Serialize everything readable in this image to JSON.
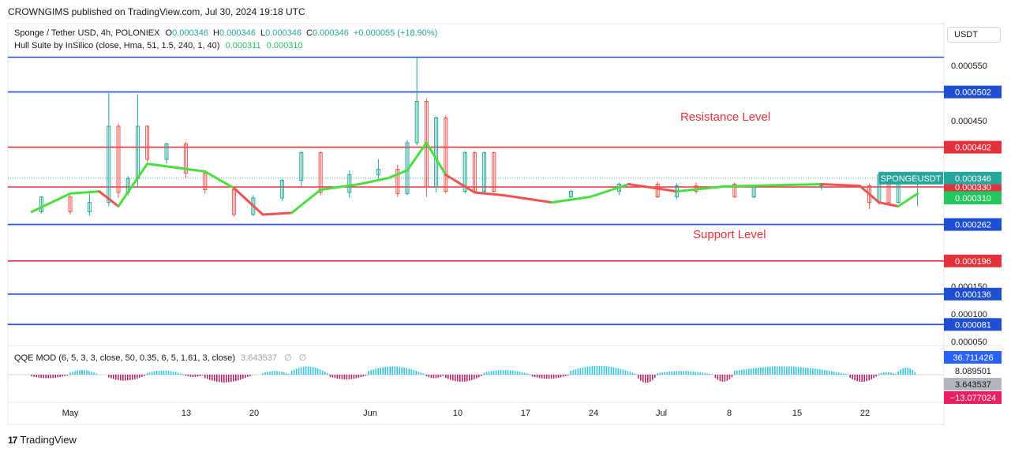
{
  "header": {
    "publisher_text": "CROWNGIMS published on TradingView.com, Jul 30, 2024 19:18 UTC"
  },
  "legend": {
    "symbol_line": "Sponge / Tether USD, 4h, POLONIEX",
    "ohlc": {
      "o_label": "O",
      "o": "0.000346",
      "h_label": "H",
      "h": "0.000346",
      "l_label": "L",
      "l": "0.000346",
      "c_label": "C",
      "c": "0.000346",
      "change": "+0.000055 (+18.90%)"
    },
    "hull_line": "Hull Suite by InSilico (close, Hma, 51, 1.5, 240, 1, 40)",
    "hull_v1": "0.000311",
    "hull_v2": "0.000310",
    "qqe_line": "QQE MOD (6, 5, 3, 3, close, 50, 0.35, 6, 5, 1.61, 3, close)",
    "qqe_val": "3.643537",
    "qqe_na1": "∅",
    "qqe_na2": "∅"
  },
  "currency_button": "USDT",
  "footer": {
    "brand": "TradingView",
    "logo_glyph": "17"
  },
  "colors": {
    "blue_line": "#1e4fd0",
    "red_line": "#e5313b",
    "hull_up": "#4ade3f",
    "hull_down": "#ef5350",
    "bull": "#26a69a",
    "bear": "#ef5350",
    "qqe_pos": "#33c3dc",
    "qqe_neg": "#b3246b"
  },
  "chart_data": {
    "type": "line",
    "title": "Sponge / Tether USD, 4h, POLONIEX",
    "ylim": [
      4e-05,
      0.00058
    ],
    "x_ticks": [
      "May",
      "13",
      "20",
      "Jun",
      "10",
      "17",
      "24",
      "Jul",
      "8",
      "15",
      "22"
    ],
    "y_ticks": [
      "0.000550",
      "0.000450",
      "0.000150",
      "0.000100",
      "0.000050"
    ],
    "annotations": {
      "resistance": "Resistance Level",
      "support": "Support Level",
      "symbol_tag": "SPONGEUSDT"
    },
    "levels": [
      {
        "value": 0.000565,
        "color": "blue",
        "label": ""
      },
      {
        "value": 0.000502,
        "color": "blue",
        "label": "0.000502"
      },
      {
        "value": 0.000402,
        "color": "red",
        "label": "0.000402"
      },
      {
        "value": 0.00033,
        "color": "red",
        "label": "0.000330"
      },
      {
        "value": 0.000262,
        "color": "blue",
        "label": "0.000262"
      },
      {
        "value": 0.000196,
        "color": "red",
        "label": "0.000196"
      },
      {
        "value": 0.000136,
        "color": "blue",
        "label": "0.000136"
      },
      {
        "value": 8.1e-05,
        "color": "blue",
        "label": "0.000081"
      }
    ],
    "price_tags": [
      {
        "value": 0.000346,
        "text": "0.000346",
        "bg": "#26a69a"
      },
      {
        "value": 0.000311,
        "text": "0.000311",
        "bg": "#22c55e"
      },
      {
        "value": 0.00031,
        "text": "0.000310",
        "bg": "#22c55e"
      }
    ],
    "hull_suite": {
      "x": [
        "Apr 27",
        "May 1",
        "May 4",
        "May 6",
        "May 9",
        "May 12",
        "May 15",
        "May 18",
        "May 21",
        "May 24",
        "May 27",
        "May 31",
        "Jun 3",
        "Jun 5",
        "Jun 7",
        "Jun 9",
        "Jun 12",
        "Jun 15",
        "Jun 20",
        "Jun 24",
        "Jun 28",
        "Jul 3",
        "Jul 8",
        "Jul 13",
        "Jul 18",
        "Jul 22",
        "Jul 24",
        "Jul 26",
        "Jul 28"
      ],
      "values": [
        0.000285,
        0.000318,
        0.000322,
        0.000295,
        0.000372,
        0.000365,
        0.000358,
        0.000328,
        0.00028,
        0.000283,
        0.000325,
        0.000335,
        0.000346,
        0.00036,
        0.00041,
        0.000352,
        0.00032,
        0.000315,
        0.000302,
        0.000312,
        0.000335,
        0.000322,
        0.000331,
        0.000333,
        0.000335,
        0.000332,
        0.000302,
        0.000295,
        0.000318
      ],
      "trend": [
        "up",
        "up",
        "down",
        "up",
        "up",
        "up",
        "up",
        "down",
        "down",
        "up",
        "up",
        "up",
        "up",
        "up",
        "up",
        "down",
        "down",
        "down",
        "up",
        "up",
        "down",
        "up",
        "up",
        "up",
        "down",
        "down",
        "down",
        "up",
        "up"
      ]
    },
    "candles": [
      {
        "x": "Apr 28",
        "o": 0.000285,
        "c": 0.000312,
        "h": 0.000312,
        "l": 0.000282
      },
      {
        "x": "May 1",
        "o": 0.000312,
        "c": 0.000285,
        "h": 0.000315,
        "l": 0.00028
      },
      {
        "x": "May 3",
        "o": 0.000285,
        "c": 0.000302,
        "h": 0.000318,
        "l": 0.000278
      },
      {
        "x": "May 5",
        "o": 0.000302,
        "c": 0.00044,
        "h": 0.0005,
        "l": 0.000295
      },
      {
        "x": "May 6",
        "o": 0.00044,
        "c": 0.00032,
        "h": 0.000445,
        "l": 0.00031
      },
      {
        "x": "May 7",
        "o": 0.00032,
        "c": 0.000345,
        "h": 0.00035,
        "l": 0.000315
      },
      {
        "x": "May 8",
        "o": 0.000345,
        "c": 0.00044,
        "h": 0.000498,
        "l": 0.00033
      },
      {
        "x": "May 9",
        "o": 0.00044,
        "c": 0.00038,
        "h": 0.000442,
        "l": 0.000375
      },
      {
        "x": "May 11",
        "o": 0.00038,
        "c": 0.000408,
        "h": 0.00041,
        "l": 0.000372
      },
      {
        "x": "May 13",
        "o": 0.000408,
        "c": 0.000355,
        "h": 0.000412,
        "l": 0.000345
      },
      {
        "x": "May 15",
        "o": 0.000355,
        "c": 0.000325,
        "h": 0.00036,
        "l": 0.000318
      },
      {
        "x": "May 18",
        "o": 0.000325,
        "c": 0.00028,
        "h": 0.000332,
        "l": 0.000276
      },
      {
        "x": "May 20",
        "o": 0.00028,
        "c": 0.00031,
        "h": 0.000315,
        "l": 0.000277
      },
      {
        "x": "May 23",
        "o": 0.00031,
        "c": 0.000342,
        "h": 0.000345,
        "l": 0.000305
      },
      {
        "x": "May 25",
        "o": 0.000342,
        "c": 0.000392,
        "h": 0.000395,
        "l": 0.00033
      },
      {
        "x": "May 27",
        "o": 0.000392,
        "c": 0.00032,
        "h": 0.000395,
        "l": 0.000315
      },
      {
        "x": "May 30",
        "o": 0.00032,
        "c": 0.000352,
        "h": 0.00036,
        "l": 0.00031
      },
      {
        "x": "Jun 2",
        "o": 0.000352,
        "c": 0.000362,
        "h": 0.00038,
        "l": 0.000345
      },
      {
        "x": "Jun 4",
        "o": 0.000362,
        "c": 0.000318,
        "h": 0.00037,
        "l": 0.000312
      },
      {
        "x": "Jun 5",
        "o": 0.000318,
        "c": 0.00041,
        "h": 0.000415,
        "l": 0.000315
      },
      {
        "x": "Jun 6",
        "o": 0.00041,
        "c": 0.000485,
        "h": 0.000565,
        "l": 0.000405
      },
      {
        "x": "Jun 7",
        "o": 0.000485,
        "c": 0.00033,
        "h": 0.00049,
        "l": 0.000312
      },
      {
        "x": "Jun 8",
        "o": 0.00033,
        "c": 0.000455,
        "h": 0.000458,
        "l": 0.00032
      },
      {
        "x": "Jun 9",
        "o": 0.000455,
        "c": 0.000322,
        "h": 0.00046,
        "l": 0.000318
      },
      {
        "x": "Jun 11",
        "o": 0.000322,
        "c": 0.000392,
        "h": 0.000395,
        "l": 0.000318
      },
      {
        "x": "Jun 12",
        "o": 0.000392,
        "c": 0.000322,
        "h": 0.000395,
        "l": 0.00032
      },
      {
        "x": "Jun 13",
        "o": 0.000322,
        "c": 0.000392,
        "h": 0.000394,
        "l": 0.00032
      },
      {
        "x": "Jun 14",
        "o": 0.000392,
        "c": 0.000322,
        "h": 0.000394,
        "l": 0.00032
      },
      {
        "x": "Jun 22",
        "o": 0.000312,
        "c": 0.000322,
        "h": 0.000325,
        "l": 0.00031
      },
      {
        "x": "Jun 27",
        "o": 0.000322,
        "c": 0.000335,
        "h": 0.000338,
        "l": 0.000315
      },
      {
        "x": "Jul 1",
        "o": 0.000335,
        "c": 0.000312,
        "h": 0.00034,
        "l": 0.00031
      },
      {
        "x": "Jul 3",
        "o": 0.000312,
        "c": 0.000332,
        "h": 0.000336,
        "l": 0.000308
      },
      {
        "x": "Jul 5",
        "o": 0.000332,
        "c": 0.000322,
        "h": 0.000338,
        "l": 0.000318
      },
      {
        "x": "Jul 9",
        "o": 0.000335,
        "c": 0.000312,
        "h": 0.000338,
        "l": 0.00031
      },
      {
        "x": "Jul 11",
        "o": 0.000312,
        "c": 0.00033,
        "h": 0.000332,
        "l": 0.00031
      },
      {
        "x": "Jul 18",
        "o": 0.00033,
        "c": 0.000332,
        "h": 0.000335,
        "l": 0.000325
      },
      {
        "x": "Jul 23",
        "o": 0.000332,
        "c": 0.000302,
        "h": 0.000336,
        "l": 0.00029
      },
      {
        "x": "Jul 24",
        "o": 0.000302,
        "c": 0.000352,
        "h": 0.000355,
        "l": 0.000298
      },
      {
        "x": "Jul 25",
        "o": 0.000352,
        "c": 0.000302,
        "h": 0.000354,
        "l": 0.000298
      },
      {
        "x": "Jul 26",
        "o": 0.000302,
        "c": 0.000346,
        "h": 0.00035,
        "l": 0.0003
      },
      {
        "x": "Jul 28",
        "o": 0.000346,
        "c": 0.000346,
        "h": 0.000346,
        "l": 0.000295
      }
    ],
    "qqe_mod": {
      "ylim": [
        -16,
        40
      ],
      "price_tags": [
        {
          "value": 36.711426,
          "text": "36.711426",
          "bg": "#2962ff"
        },
        {
          "value": 8.089501,
          "text": "8.089501",
          "bg": "#ffffff"
        },
        {
          "value": 3.643537,
          "text": "3.643537",
          "bg": "#b2b5be"
        },
        {
          "value": -13.077024,
          "text": "−13.077024",
          "bg": "#e91e63"
        }
      ],
      "segments": [
        {
          "from": "Apr 27",
          "to": "May 1",
          "peak": -6
        },
        {
          "from": "May 1",
          "to": "May 4",
          "peak": 8
        },
        {
          "from": "May 5",
          "to": "May 9",
          "peak": -10
        },
        {
          "from": "May 9",
          "to": "May 13",
          "peak": 7
        },
        {
          "from": "May 13",
          "to": "May 15",
          "peak": -4
        },
        {
          "from": "May 15",
          "to": "May 20",
          "peak": -13
        },
        {
          "from": "May 21",
          "to": "May 24",
          "peak": 6
        },
        {
          "from": "May 24",
          "to": "May 28",
          "peak": 14
        },
        {
          "from": "May 28",
          "to": "Jun 1",
          "peak": -8
        },
        {
          "from": "Jun 1",
          "to": "Jun 7",
          "peak": 14
        },
        {
          "from": "Jun 7",
          "to": "Jun 9",
          "peak": -6
        },
        {
          "from": "Jun 9",
          "to": "Jun 13",
          "peak": -12
        },
        {
          "from": "Jun 13",
          "to": "Jun 18",
          "peak": 8
        },
        {
          "from": "Jun 18",
          "to": "Jun 22",
          "peak": -7
        },
        {
          "from": "Jun 22",
          "to": "Jun 29",
          "peak": 15
        },
        {
          "from": "Jun 29",
          "to": "Jul 1",
          "peak": -14
        },
        {
          "from": "Jul 1",
          "to": "Jul 7",
          "peak": 6
        },
        {
          "from": "Jul 7",
          "to": "Jul 9",
          "peak": -12
        },
        {
          "from": "Jul 9",
          "to": "Jul 21",
          "peak": 14
        },
        {
          "from": "Jul 21",
          "to": "Jul 24",
          "peak": -12
        },
        {
          "from": "Jul 24",
          "to": "Jul 26",
          "peak": 4
        },
        {
          "from": "Jul 26",
          "to": "Jul 28",
          "peak": 12
        }
      ]
    }
  }
}
